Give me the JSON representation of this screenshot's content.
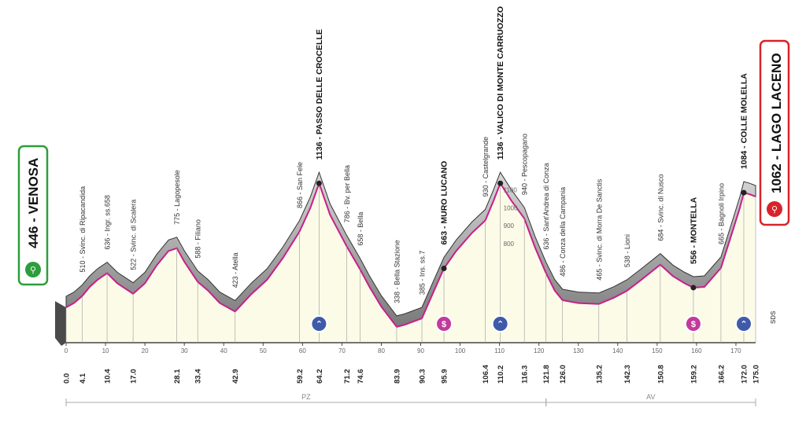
{
  "stage": {
    "start": {
      "elevation": "446",
      "name": "VENOSA",
      "color": "#2e9d3c"
    },
    "finish": {
      "elevation": "1062",
      "name": "LAGO LACENO",
      "color": "#d8232a"
    },
    "brand": "SDS",
    "distance_ticks": [
      "0",
      "10",
      "20",
      "30",
      "40",
      "50",
      "60",
      "70",
      "80",
      "90",
      "100",
      "110",
      "120",
      "130",
      "140",
      "150",
      "160",
      "170"
    ],
    "elevation_ticks": [
      "1100",
      "1000",
      "900",
      "800"
    ],
    "regions": [
      {
        "label": "PZ",
        "from_km": 0,
        "to_km": 121.8
      },
      {
        "label": "AV",
        "from_km": 121.8,
        "to_km": 175
      }
    ],
    "colors": {
      "profile_fill": "#fbfbe8",
      "profile_shade": "#8e8e8e",
      "elevation_line": "#c81f8a",
      "climb_badge": "#3f5aa8",
      "sprint_badge": "#c23a9c"
    }
  },
  "waypoints": [
    {
      "km": 0.0,
      "km_label": "0.0",
      "text": "",
      "elev": 446,
      "major": false
    },
    {
      "km": 4.1,
      "km_label": "4.1",
      "text": "510 - Svinc. di Ripacandida",
      "elev": 510,
      "major": false
    },
    {
      "km": 10.4,
      "km_label": "10.4",
      "text": "636 - Ingr. ss.658",
      "elev": 636,
      "major": false
    },
    {
      "km": 17.0,
      "km_label": "17.0",
      "text": "522 - Svinc. di Scalera",
      "elev": 522,
      "major": false
    },
    {
      "km": 28.1,
      "km_label": "28.1",
      "text": "775 - Lagopesole",
      "elev": 775,
      "major": false
    },
    {
      "km": 33.4,
      "km_label": "33.4",
      "text": "588 - Filiano",
      "elev": 588,
      "major": false
    },
    {
      "km": 42.9,
      "km_label": "42.9",
      "text": "423 - Atella",
      "elev": 423,
      "major": false
    },
    {
      "km": 59.2,
      "km_label": "59.2",
      "text": "866 - San Fele",
      "elev": 866,
      "major": false
    },
    {
      "km": 64.2,
      "km_label": "64.2",
      "text": "1136 - PASSO DELLE CROCELLE",
      "elev": 1136,
      "major": true,
      "badge": "climb"
    },
    {
      "km": 71.2,
      "km_label": "71.2",
      "text": "786 - Bv. per Bella",
      "elev": 786,
      "major": false
    },
    {
      "km": 74.6,
      "km_label": "74.6",
      "text": "658 - Bella",
      "elev": 658,
      "major": false
    },
    {
      "km": 83.9,
      "km_label": "83.9",
      "text": "338 - Bella Stazione",
      "elev": 338,
      "major": false
    },
    {
      "km": 90.3,
      "km_label": "90.3",
      "text": "385 - Ins. ss.7",
      "elev": 385,
      "major": false
    },
    {
      "km": 95.9,
      "km_label": "95.9",
      "text": "663 - MURO LUCANO",
      "elev": 663,
      "major": true,
      "badge": "sprint"
    },
    {
      "km": 106.4,
      "km_label": "106.4",
      "text": "930 - Castelgrande",
      "elev": 930,
      "major": false
    },
    {
      "km": 110.2,
      "km_label": "110.2",
      "text": "1136 - VALICO DI MONTE CARRUOZZO",
      "elev": 1136,
      "major": true,
      "badge": "climb"
    },
    {
      "km": 116.3,
      "km_label": "116.3",
      "text": "940 - Pescopagano",
      "elev": 940,
      "major": false
    },
    {
      "km": 121.8,
      "km_label": "121.8",
      "text": "636 - Sant'Andrea di Conza",
      "elev": 636,
      "major": false
    },
    {
      "km": 126.0,
      "km_label": "126.0",
      "text": "486 - Conza della Campania",
      "elev": 486,
      "major": false
    },
    {
      "km": 135.2,
      "km_label": "135.2",
      "text": "465 - Svinc. di Morra De Sanctis",
      "elev": 465,
      "major": false
    },
    {
      "km": 142.3,
      "km_label": "142.3",
      "text": "538 - Lioni",
      "elev": 538,
      "major": false
    },
    {
      "km": 150.8,
      "km_label": "150.8",
      "text": "684 - Svinc. di Nusco",
      "elev": 684,
      "major": false
    },
    {
      "km": 159.2,
      "km_label": "159.2",
      "text": "556 - MONTELLA",
      "elev": 556,
      "major": true,
      "badge": "sprint"
    },
    {
      "km": 166.2,
      "km_label": "166.2",
      "text": "665 - Bagnoli Irpino",
      "elev": 665,
      "major": false
    },
    {
      "km": 172.0,
      "km_label": "172.0",
      "text": "1084 - COLLE MOLELLA",
      "elev": 1084,
      "major": true,
      "badge": "climb"
    },
    {
      "km": 175.0,
      "km_label": "175.0",
      "text": "",
      "elev": 1062,
      "major": false
    }
  ],
  "profile": [
    [
      0,
      446
    ],
    [
      2,
      470
    ],
    [
      4.1,
      510
    ],
    [
      6,
      560
    ],
    [
      8,
      600
    ],
    [
      10.4,
      636
    ],
    [
      13,
      580
    ],
    [
      17.0,
      522
    ],
    [
      20,
      580
    ],
    [
      23,
      680
    ],
    [
      26,
      760
    ],
    [
      28.1,
      775
    ],
    [
      30,
      700
    ],
    [
      33.4,
      588
    ],
    [
      36,
      540
    ],
    [
      39,
      470
    ],
    [
      42.9,
      423
    ],
    [
      47,
      520
    ],
    [
      51,
      600
    ],
    [
      55,
      720
    ],
    [
      59.2,
      866
    ],
    [
      62,
      1000
    ],
    [
      64.2,
      1136
    ],
    [
      67,
      960
    ],
    [
      71.2,
      786
    ],
    [
      74.6,
      658
    ],
    [
      77,
      560
    ],
    [
      80,
      450
    ],
    [
      83.9,
      338
    ],
    [
      86,
      350
    ],
    [
      90.3,
      385
    ],
    [
      93,
      520
    ],
    [
      95.9,
      663
    ],
    [
      99,
      760
    ],
    [
      103,
      860
    ],
    [
      106.4,
      930
    ],
    [
      108.5,
      1040
    ],
    [
      110.2,
      1136
    ],
    [
      113,
      1040
    ],
    [
      116.3,
      940
    ],
    [
      119,
      780
    ],
    [
      121.8,
      636
    ],
    [
      124,
      540
    ],
    [
      126.0,
      486
    ],
    [
      130,
      470
    ],
    [
      135.2,
      465
    ],
    [
      139,
      500
    ],
    [
      142.3,
      538
    ],
    [
      146,
      600
    ],
    [
      150.8,
      684
    ],
    [
      154,
      620
    ],
    [
      157,
      580
    ],
    [
      159.2,
      556
    ],
    [
      162,
      560
    ],
    [
      166.2,
      665
    ],
    [
      169,
      860
    ],
    [
      171,
      1000
    ],
    [
      172.0,
      1084
    ],
    [
      173.5,
      1075
    ],
    [
      175,
      1062
    ]
  ]
}
